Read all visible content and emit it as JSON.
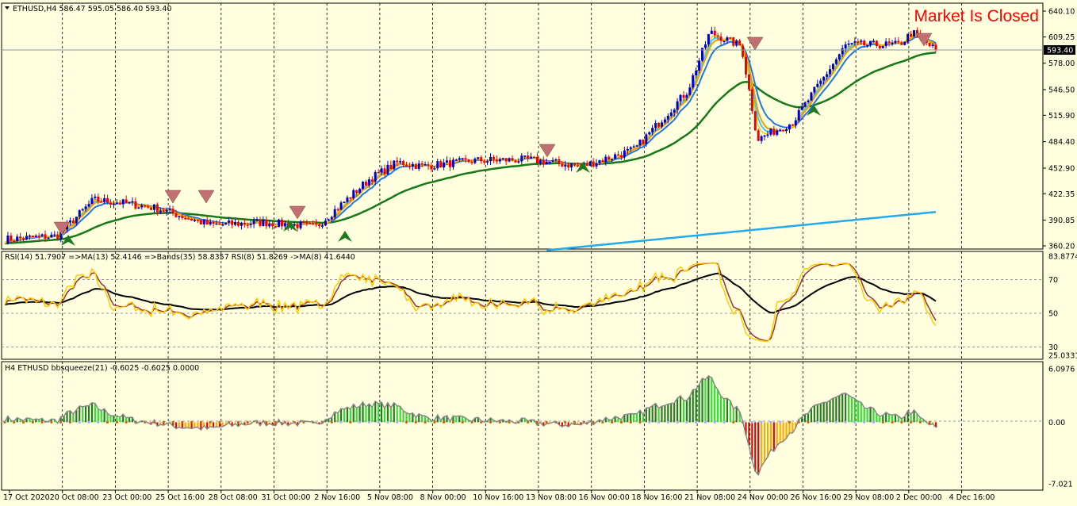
{
  "window": {
    "symbol_header": "ETHUSD,H4  586.47 595.05 586.40 593.40",
    "market_status": "Market Is Closed",
    "current_price": "593.40"
  },
  "colors": {
    "background": "#FFFFE0",
    "bull_bar": "#0000CC",
    "bear_bar": "#EE0000",
    "ma_fast": "#33CCFF",
    "ma_mid": "#1E78E0",
    "ma_orange": "#FF9900",
    "ma_yellow": "#FFCC00",
    "ma_green": "#157A15",
    "ma_long_blue": "#22AAEE",
    "rsi_yellow": "#FFCC00",
    "rsi_brown": "#993333",
    "rsi_black": "#000000",
    "squeeze_dark_green": "#1F7F1F",
    "squeeze_green": "#33DD33",
    "squeeze_red": "#EE0000",
    "squeeze_orange": "#FFAA00"
  },
  "price_panel": {
    "y_ticks": [
      "640.10",
      "609.25",
      "578.00",
      "546.50",
      "515.90",
      "484.40",
      "452.90",
      "422.35",
      "390.85",
      "360.20"
    ],
    "y_min": 360.2,
    "y_max": 640.1
  },
  "rsi_panel": {
    "header": "RSI(14) 51.7907  =>MA(13) 52.4146  =>Bands(35) 58.8357  RSI(8) 51.8269  ->MA(8) 41.6440",
    "y_ticks": [
      "83.8774",
      "70",
      "50",
      "30",
      "25.0331"
    ],
    "y_min": 25.0331,
    "y_max": 83.8774,
    "levels": [
      70,
      50,
      30
    ]
  },
  "squeeze_panel": {
    "header": "H4 ETHUSD bbsqueeze(21) -0.6025 -0.6025 0.0000",
    "y_ticks": [
      "6.0976",
      "0.00",
      "-7.021"
    ],
    "y_min": -7.021,
    "y_max": 6.0976
  },
  "x_axis": {
    "labels": [
      "17 Oct 2020",
      "20 Oct 08:00",
      "23 Oct 00:00",
      "25 Oct 16:00",
      "28 Oct 08:00",
      "31 Oct 00:00",
      "2 Nov 16:00",
      "5 Nov 08:00",
      "8 Nov 00:00",
      "10 Nov 16:00",
      "13 Nov 08:00",
      "16 Nov 00:00",
      "18 Nov 16:00",
      "21 Nov 08:00",
      "24 Nov 00:00",
      "26 Nov 16:00",
      "29 Nov 08:00",
      "2 Dec 00:00",
      "4 Dec 16:00"
    ]
  },
  "chart_data": {
    "type": "candlestick",
    "title": "ETHUSD,H4",
    "price_keypoints": [
      [
        "17 Oct 2020",
        368
      ],
      [
        "20 Oct 08:00",
        372
      ],
      [
        "22 Oct",
        415
      ],
      [
        "23 Oct 00:00",
        412
      ],
      [
        "25 Oct 16:00",
        405
      ],
      [
        "28 Oct 08:00",
        385
      ],
      [
        "31 Oct 00:00",
        388
      ],
      [
        "2 Nov 16:00",
        383
      ],
      [
        "5 Nov 08:00",
        440
      ],
      [
        "6 Nov",
        460
      ],
      [
        "8 Nov 00:00",
        455
      ],
      [
        "10 Nov 16:00",
        462
      ],
      [
        "13 Nov 08:00",
        463
      ],
      [
        "16 Nov 00:00",
        455
      ],
      [
        "18 Nov 16:00",
        475
      ],
      [
        "21 Nov 08:00",
        545
      ],
      [
        "23 Nov",
        615
      ],
      [
        "24 Nov 00:00",
        598
      ],
      [
        "25 Nov",
        487
      ],
      [
        "26 Nov 16:00",
        508
      ],
      [
        "29 Nov 08:00",
        600
      ],
      [
        "2 Dec 00:00",
        600
      ],
      [
        "3 Dec",
        615
      ],
      [
        "4 Dec 16:00",
        593.4
      ]
    ],
    "signal_arrows": {
      "sell": [
        "20 Oct",
        "25 Oct",
        "26 Oct",
        "1 Nov",
        "11 Nov",
        "24 Nov",
        "3 Dec"
      ],
      "buy": [
        "20 Oct",
        "31 Oct",
        "2 Nov",
        "16 Nov",
        "27 Nov"
      ]
    }
  }
}
